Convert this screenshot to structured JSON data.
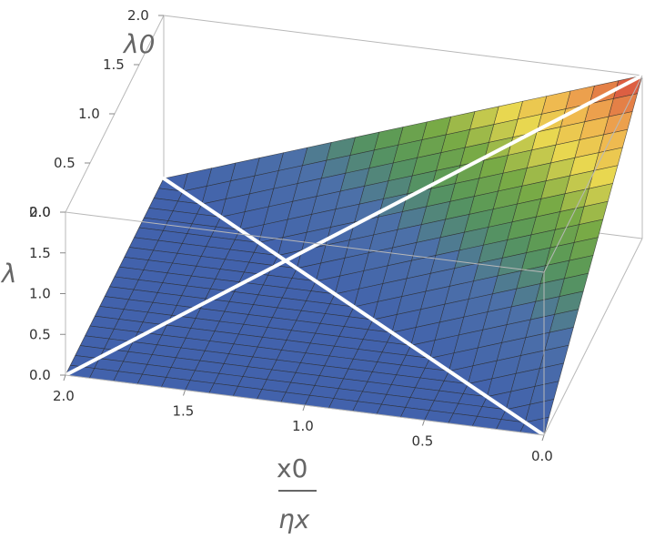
{
  "chart_data": {
    "type": "surface3d",
    "title": "",
    "z_label": "λ",
    "depth_label": "λ0",
    "x_label_numerator": "x0",
    "x_label_denominator": "ηx",
    "x_axis": {
      "range": [
        0.0,
        2.0
      ],
      "ticks": [
        "0.0",
        "0.5",
        "1.0",
        "1.5",
        "2.0"
      ]
    },
    "depth_axis": {
      "range": [
        0.0,
        2.0
      ],
      "ticks": [
        "0.0",
        "0.5",
        "1.0",
        "1.5",
        "2.0"
      ]
    },
    "z_axis": {
      "range": [
        0.0,
        2.0
      ],
      "ticks": [
        "0.0",
        "0.5",
        "1.0",
        "1.5",
        "2.0"
      ]
    },
    "function": "λ = max(0, λ0 − x0/ηx)",
    "mesh_lines": 20,
    "color_scale": "blue-green-yellow-red (by height)",
    "crease_line": "λ0 = x0/ηx",
    "diagonal_line": "x0/ηx = 2 − λ0",
    "line_color": "#ffffff",
    "box": true
  }
}
